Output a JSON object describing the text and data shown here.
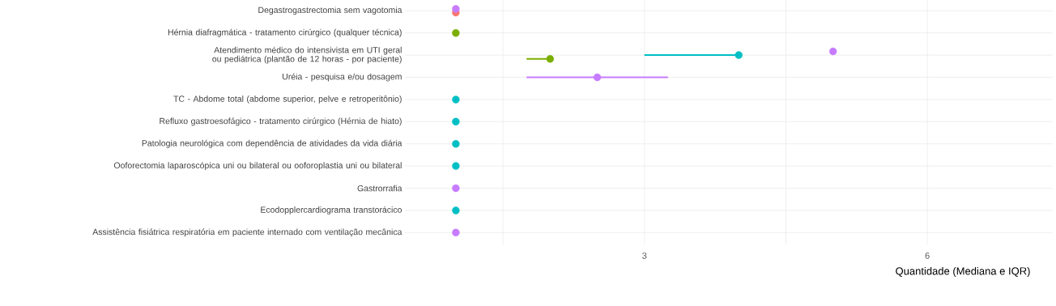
{
  "chart_data": {
    "type": "scatter",
    "orientation": "horizontal",
    "xlabel": "Quantidade (Mediana e IQR)",
    "categories": [
      "Degastrogastrectomia sem vagotomia",
      "Hérnia diafragmática - tratamento cirúrgico (qualquer técnica)",
      "Atendimento médico do intensivista em UTI geral ou pediátrica (plantão de 12 horas - por paciente)",
      "Uréia - pesquisa e/ou dosagem",
      "TC - Abdome total (abdome superior, pelve e retroperitônio)",
      "Refluxo gastroesofágico - tratamento cirúrgico (Hérnia de hiato)",
      "Patologia neurológica com dependência de atividades da vida diária",
      "Ooforectomia laparoscópica uni ou bilateral ou ooforoplastia uni ou bilateral",
      "Gastrorrafia",
      "Ecodopplercardiograma transtorácico",
      "Assistência fisiátrica respiratória em paciente internado com ventilação mecânica"
    ],
    "series": [
      {
        "color": "#f8766d",
        "values": [
          1,
          null,
          null,
          null,
          null,
          null,
          null,
          null,
          null,
          null,
          null
        ]
      },
      {
        "color": "#7cae00",
        "values": [
          null,
          1,
          2.0,
          null,
          null,
          null,
          null,
          null,
          null,
          null,
          null
        ],
        "errors": [
          null,
          null,
          [
            1.75,
            2.0
          ],
          null,
          null,
          null,
          null,
          null,
          null,
          null,
          null
        ]
      },
      {
        "color": "#00bfc4",
        "values": [
          null,
          null,
          4.0,
          null,
          1,
          1,
          1,
          1,
          null,
          1,
          null
        ],
        "errors": [
          null,
          null,
          [
            3.0,
            4.0
          ],
          null,
          null,
          null,
          null,
          null,
          null,
          null,
          null
        ]
      },
      {
        "color": "#c77cff",
        "values": [
          1,
          null,
          5.0,
          2.5,
          null,
          null,
          null,
          null,
          1,
          null,
          1
        ],
        "errors": [
          null,
          null,
          null,
          [
            1.75,
            3.25
          ],
          null,
          null,
          null,
          null,
          null,
          null,
          null
        ]
      }
    ],
    "xlim": [
      0.46,
      7.33
    ],
    "xticks": [
      {
        "value": 1.5,
        "label": null
      },
      3,
      {
        "value": 4.5,
        "label": null
      },
      6
    ],
    "grid": true
  }
}
